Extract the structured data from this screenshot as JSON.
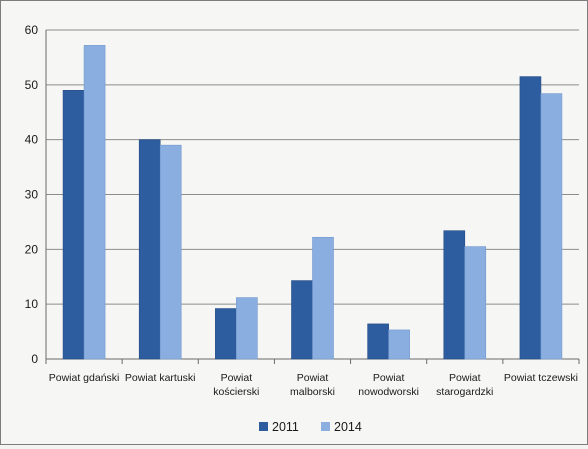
{
  "chart_data": {
    "type": "bar",
    "categories": [
      [
        "Powiat gdański"
      ],
      [
        "Powiat kartuski"
      ],
      [
        "Powiat",
        "kościerski"
      ],
      [
        "Powiat",
        "malborski"
      ],
      [
        "Powiat",
        "nowodworski"
      ],
      [
        "Powiat",
        "starogardzki"
      ],
      [
        "Powiat tczewski"
      ]
    ],
    "series": [
      {
        "name": "2011",
        "color": "#2e5d9f",
        "values": [
          49,
          40,
          9.2,
          14.3,
          6.4,
          23.4,
          51.5
        ]
      },
      {
        "name": "2014",
        "color": "#8aaedf",
        "values": [
          57.2,
          39,
          11.2,
          22.2,
          5.3,
          20.5,
          48.4
        ]
      }
    ],
    "title": "",
    "xlabel": "",
    "ylabel": "",
    "ylim": [
      0,
      60
    ],
    "yticks": [
      "0",
      "10",
      "20",
      "30",
      "40",
      "50",
      "60"
    ],
    "grid": true,
    "legend": "bottom"
  }
}
